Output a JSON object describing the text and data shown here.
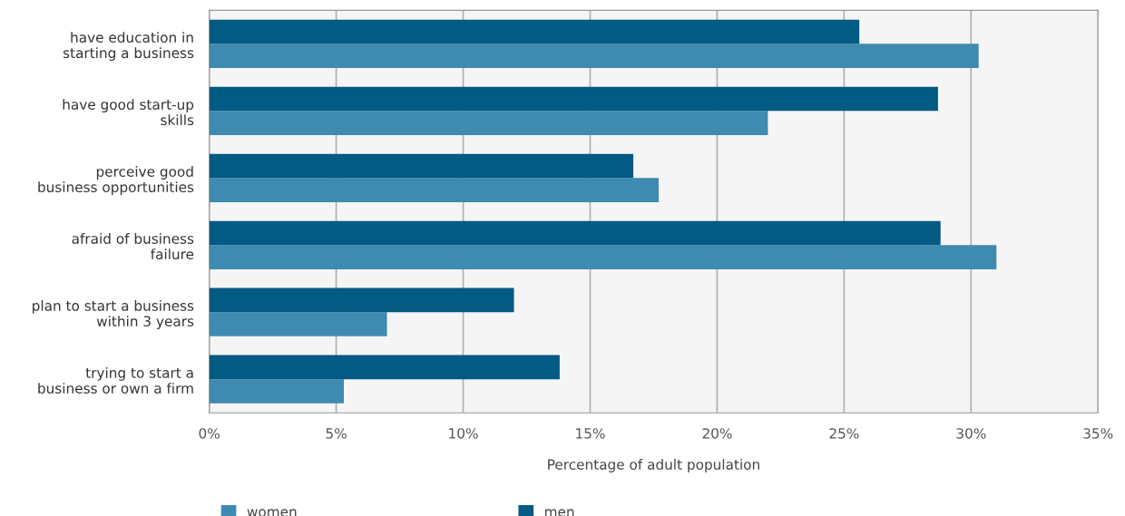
{
  "chart_data": {
    "type": "bar",
    "orientation": "horizontal",
    "xlabel": "Percentage of adult population",
    "categories": [
      "have education in\nstarting a business",
      "have good start-up\nskills",
      "perceive good\nbusiness opportunities",
      "afraid of business\nfailure",
      "plan to start a business\nwithin 3 years",
      "trying to start a\nbusiness or own a firm"
    ],
    "series": [
      {
        "name": "women",
        "color": "#3f8ab0",
        "values": [
          30.3,
          22.0,
          17.7,
          31.0,
          7.0,
          5.3
        ]
      },
      {
        "name": "men",
        "color": "#035a82",
        "values": [
          25.6,
          28.7,
          16.7,
          28.8,
          12.0,
          13.8
        ]
      }
    ],
    "xlim": [
      0,
      35
    ],
    "xticks": [
      {
        "value": 0,
        "label": "0%"
      },
      {
        "value": 5,
        "label": "5%"
      },
      {
        "value": 10,
        "label": "10%"
      },
      {
        "value": 15,
        "label": "15%"
      },
      {
        "value": 20,
        "label": "20%"
      },
      {
        "value": 25,
        "label": "25%"
      },
      {
        "value": 30,
        "label": "30%"
      },
      {
        "value": 35,
        "label": "35%"
      }
    ],
    "grid": "x",
    "legend": "bottom left"
  }
}
